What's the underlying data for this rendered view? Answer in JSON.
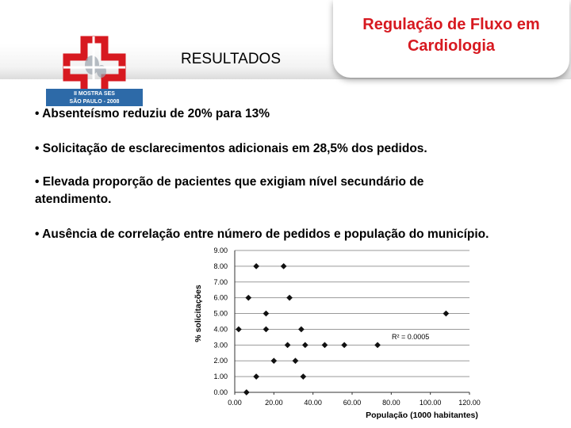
{
  "slide": {
    "results_heading": "RESULTADOS",
    "title_line1": "Regulação de Fluxo em",
    "title_line2": "Cardiologia",
    "logo_line1": "II MOSTRA SES",
    "logo_line2": "SÃO PAULO - 2008",
    "bullets": [
      "• Absenteísmo reduziu de 20% para 13%",
      "• Solicitação de esclarecimentos adicionais em 28,5% dos pedidos.",
      "• Elevada proporção de pacientes que exigiam nível secundário de",
      "atendimento.",
      "• Ausência de correlação entre número de pedidos e população do município."
    ],
    "colors": {
      "title_red": "#d71920",
      "logo_red": "#d71920",
      "logo_blue": "#2d6aa8"
    }
  },
  "chart_data": {
    "type": "scatter",
    "xlabel": "População (1000 habitantes)",
    "ylabel": "% solicitações",
    "xlim": [
      0,
      120
    ],
    "ylim": [
      0,
      9
    ],
    "x_ticks": [
      "0.00",
      "20.00",
      "40.00",
      "60.00",
      "80.00",
      "100.00",
      "120.00"
    ],
    "y_ticks": [
      "0.00",
      "1.00",
      "2.00",
      "3.00",
      "4.00",
      "5.00",
      "6.00",
      "7.00",
      "8.00",
      "9.00"
    ],
    "annotation": "R² = 0.0005",
    "grid": "horizontal",
    "points": [
      {
        "x": 6,
        "y": 0
      },
      {
        "x": 11,
        "y": 8
      },
      {
        "x": 25,
        "y": 8
      },
      {
        "x": 7,
        "y": 6
      },
      {
        "x": 28,
        "y": 6
      },
      {
        "x": 16,
        "y": 5
      },
      {
        "x": 108,
        "y": 5
      },
      {
        "x": 2,
        "y": 4
      },
      {
        "x": 16,
        "y": 4
      },
      {
        "x": 34,
        "y": 4
      },
      {
        "x": 27,
        "y": 3
      },
      {
        "x": 36,
        "y": 3
      },
      {
        "x": 46,
        "y": 3
      },
      {
        "x": 56,
        "y": 3
      },
      {
        "x": 73,
        "y": 3
      },
      {
        "x": 20,
        "y": 2
      },
      {
        "x": 31,
        "y": 2
      },
      {
        "x": 11,
        "y": 1
      },
      {
        "x": 35,
        "y": 1
      }
    ]
  }
}
